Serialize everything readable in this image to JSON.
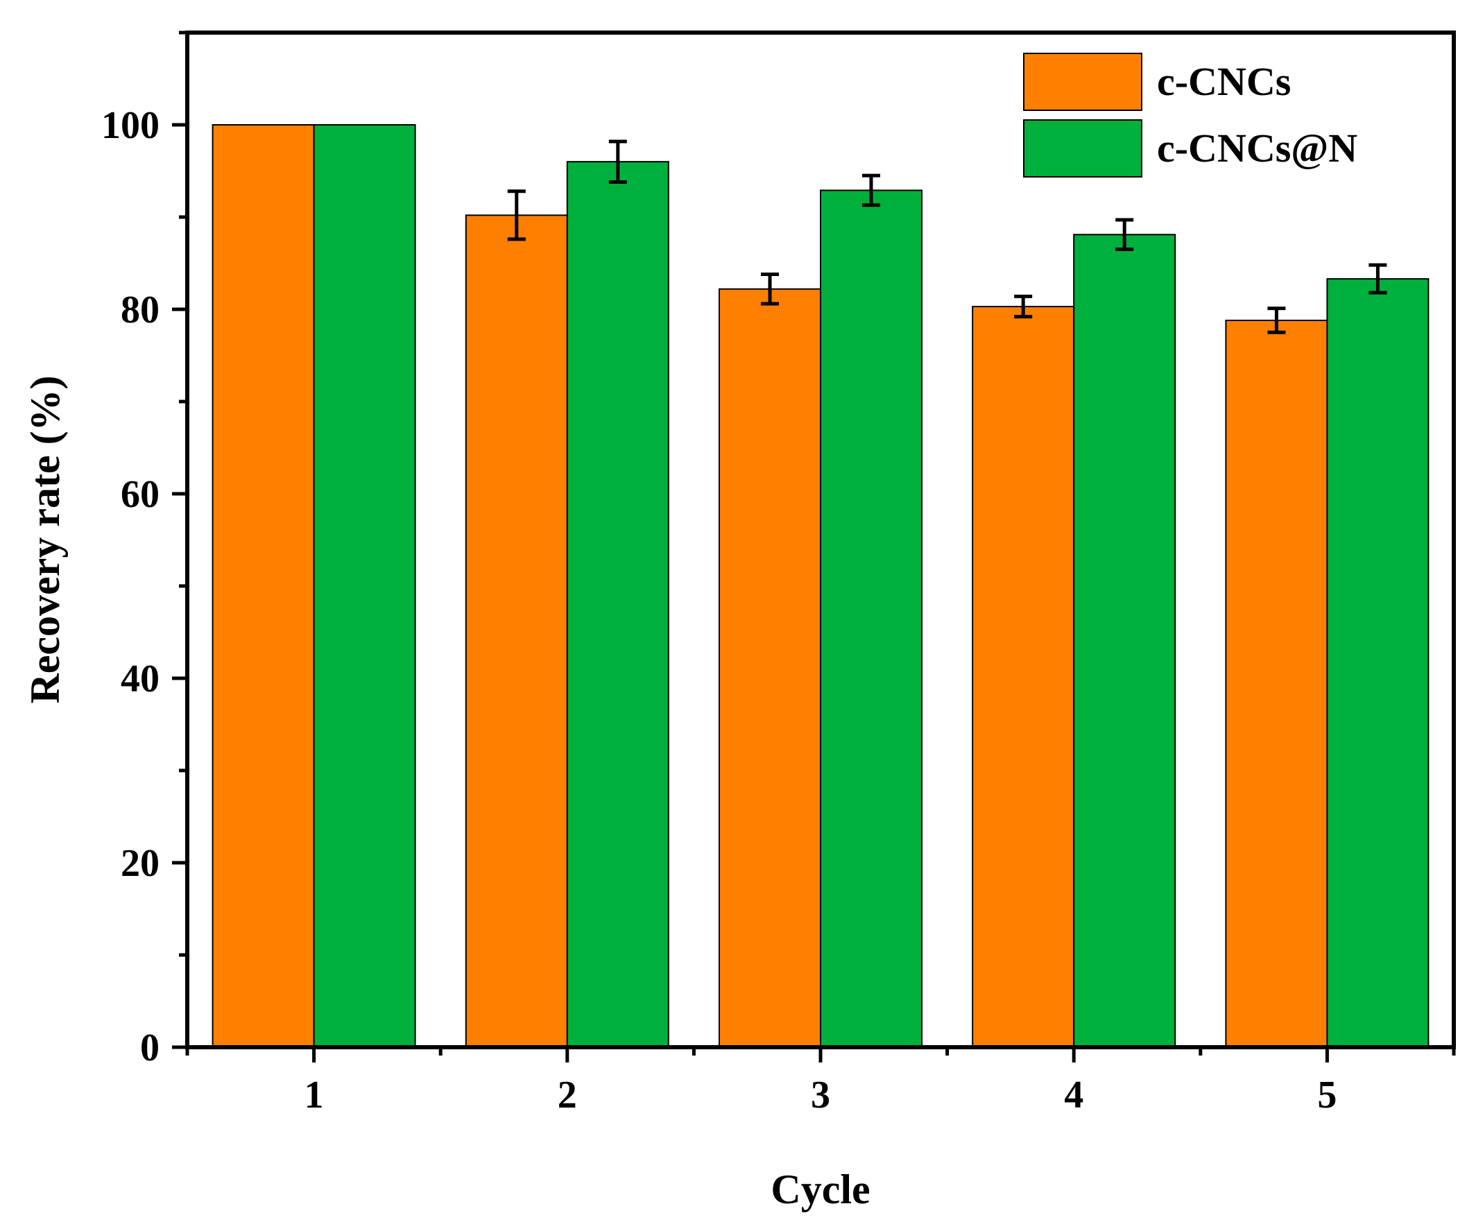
{
  "chart_data": {
    "type": "bar",
    "categories": [
      "1",
      "2",
      "3",
      "4",
      "5"
    ],
    "series": [
      {
        "name": "c-CNCs",
        "color": "#ff8000",
        "values": [
          100,
          90.2,
          82.2,
          80.3,
          78.8
        ],
        "errors": [
          0,
          2.6,
          1.6,
          1.1,
          1.3
        ]
      },
      {
        "name": "c-CNCs@N",
        "color": "#00b03c",
        "values": [
          100,
          96.0,
          92.9,
          88.1,
          83.3
        ],
        "errors": [
          0,
          2.2,
          1.6,
          1.6,
          1.5
        ]
      }
    ],
    "xlabel": "Cycle",
    "ylabel": "Recovery rate (%)",
    "ylim": [
      0,
      110
    ],
    "yticks": [
      0,
      20,
      40,
      60,
      80,
      100
    ],
    "yticks_text": [
      "0",
      "20",
      "40",
      "60",
      "80",
      "100"
    ],
    "legend_position": "top-right",
    "grid": false
  }
}
